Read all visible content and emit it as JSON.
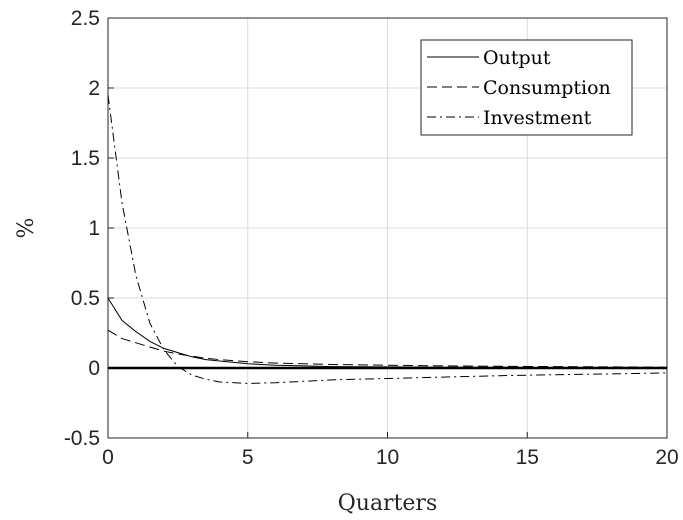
{
  "chart_data": {
    "type": "line",
    "title": "",
    "xlabel": "Quarters",
    "ylabel": "%",
    "xlim": [
      0,
      20
    ],
    "ylim": [
      -0.5,
      2.5
    ],
    "xticks": [
      0,
      5,
      10,
      15,
      20
    ],
    "xtick_labels": [
      "0",
      "5",
      "10",
      "15",
      "20"
    ],
    "yticks": [
      -0.5,
      0,
      0.5,
      1,
      1.5,
      2,
      2.5
    ],
    "ytick_labels": [
      "-0.5",
      "0",
      "0.5",
      "1",
      "1.5",
      "2",
      "2.5"
    ],
    "grid": true,
    "legend_position": "top-right",
    "x": [
      0,
      0.5,
      1,
      1.5,
      2,
      2.5,
      3,
      3.5,
      4,
      5,
      6,
      7,
      8,
      10,
      12,
      14,
      16,
      18,
      20
    ],
    "series": [
      {
        "name": "Output",
        "style": "solid",
        "values": [
          0.5,
          0.34,
          0.26,
          0.19,
          0.14,
          0.11,
          0.08,
          0.06,
          0.05,
          0.03,
          0.02,
          0.015,
          0.01,
          0.008,
          0.005,
          0.004,
          0.003,
          0.002,
          0.002
        ]
      },
      {
        "name": "Consumption",
        "style": "dashed",
        "values": [
          0.27,
          0.21,
          0.18,
          0.15,
          0.12,
          0.1,
          0.085,
          0.07,
          0.06,
          0.045,
          0.035,
          0.03,
          0.025,
          0.02,
          0.015,
          0.012,
          0.01,
          0.008,
          0.006
        ]
      },
      {
        "name": "Investment",
        "style": "dashdot",
        "values": [
          1.95,
          1.18,
          0.66,
          0.32,
          0.13,
          0.01,
          -0.05,
          -0.08,
          -0.1,
          -0.11,
          -0.105,
          -0.095,
          -0.085,
          -0.075,
          -0.065,
          -0.055,
          -0.048,
          -0.042,
          -0.035
        ]
      }
    ],
    "reference_line": {
      "y": 0,
      "color": "#000000"
    }
  }
}
